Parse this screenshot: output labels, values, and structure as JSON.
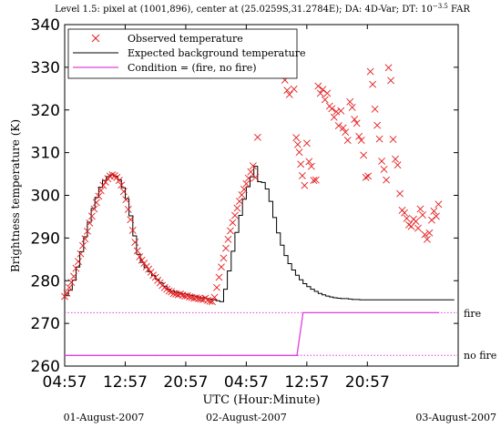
{
  "chart_data": {
    "type": "line",
    "title_prefix": "Level 1.5: pixel at (1001,896), center at (25.0259S,31.2784E); DA: 4D-Var; DT: 10",
    "title_exponent": "−3.5",
    "title_suffix": " FAR",
    "xlabel": "UTC (Hour:Minute)",
    "ylabel": "Brightness temperature (K)",
    "x_unit": "hours since 01-August-2007 04:57 UTC",
    "xlim": [
      0,
      52
    ],
    "ylim": [
      260,
      340
    ],
    "yticks": [
      260,
      270,
      280,
      290,
      300,
      310,
      320,
      330,
      340
    ],
    "xticks": [
      {
        "x": 0,
        "label": "04:57"
      },
      {
        "x": 8,
        "label": "12:57"
      },
      {
        "x": 16,
        "label": "20:57"
      },
      {
        "x": 24,
        "label": "04:57"
      },
      {
        "x": 32,
        "label": "12:57"
      },
      {
        "x": 40,
        "label": "20:57"
      }
    ],
    "date_labels": [
      {
        "x": 0,
        "label": "01-August-2007"
      },
      {
        "x": 24,
        "label": "02-August-2007"
      },
      {
        "x": 48,
        "label": "03-August-2007"
      }
    ],
    "condition_labels": {
      "fire": "fire",
      "no_fire": "no fire",
      "fire_level": 272.5,
      "no_fire_level": 262.5
    },
    "legend": [
      {
        "label": "Observed temperature",
        "marker": "x",
        "color": "#e41a1c"
      },
      {
        "label": "Expected background temperature",
        "color": "#000000"
      },
      {
        "label": "Condition = (fire, no fire)",
        "color": "#e040e0"
      }
    ],
    "series": [
      {
        "name": "Expected background temperature",
        "style": "step",
        "color": "#000000",
        "x": [
          0,
          0.5,
          1,
          1.5,
          2,
          2.5,
          3,
          3.5,
          4,
          4.5,
          5,
          5.5,
          6,
          6.5,
          7,
          7.5,
          8,
          8.5,
          9,
          9.5,
          10,
          10.5,
          11,
          11.5,
          12,
          12.5,
          13,
          13.5,
          14,
          14.5,
          15,
          15.5,
          16,
          16.5,
          17,
          17.5,
          18,
          18.5,
          19,
          19.5,
          20,
          20.5,
          21,
          21.5,
          22,
          22.5,
          23,
          23.5,
          24,
          24.5,
          25,
          25.5,
          26,
          26.5,
          27,
          27.5,
          28,
          28.5,
          29,
          29.5,
          30,
          30.5,
          31,
          31.5,
          32,
          32.5,
          33,
          33.5,
          34,
          34.5,
          35,
          35.5,
          36,
          36.5,
          37,
          37.5,
          38,
          38.5,
          39,
          39.5,
          40,
          40.5,
          41,
          41.5,
          42,
          42.5,
          43,
          43.5,
          44,
          44.5,
          45,
          45.5,
          46,
          46.5,
          47,
          47.5,
          48,
          48.5,
          49,
          49.5,
          50,
          50.5,
          51,
          51.5
        ],
        "y": [
          276.5,
          277.8,
          280.1,
          283.2,
          286.8,
          290.3,
          293.7,
          296.9,
          299.5,
          301.9,
          303.5,
          304.4,
          304.8,
          304.5,
          303.6,
          301.8,
          299.2,
          295.2,
          290.5,
          286.2,
          284.3,
          283.1,
          282.1,
          281.2,
          280.3,
          279.5,
          278.7,
          278.0,
          277.6,
          277.3,
          277.1,
          276.9,
          276.8,
          276.6,
          276.4,
          276.2,
          276.0,
          275.8,
          275.7,
          275.5,
          275.3,
          275.1,
          278.0,
          282.3,
          286.9,
          291.3,
          295.3,
          299.1,
          302.0,
          304.3,
          306.8,
          303.2,
          303.0,
          301.5,
          298.6,
          294.8,
          291.2,
          288.3,
          285.9,
          284.0,
          282.5,
          281.3,
          280.2,
          279.3,
          278.6,
          278.0,
          277.5,
          277.0,
          276.7,
          276.4,
          276.2,
          276.0,
          275.9,
          275.8,
          275.8,
          275.7,
          275.6,
          275.6,
          275.5,
          275.5,
          275.5,
          275.5,
          275.5,
          275.5,
          275.5,
          275.5,
          275.5,
          275.5,
          275.5,
          275.5,
          275.5,
          275.5,
          275.5,
          275.5,
          275.5,
          275.5,
          275.5,
          275.5,
          275.5,
          275.5,
          275.5,
          275.5,
          275.5,
          275.5
        ]
      },
      {
        "name": "Condition = (fire, no fire)",
        "style": "step",
        "color": "#e040e0",
        "x": [
          0,
          30.7,
          31.5,
          49.5
        ],
        "y": [
          262.5,
          262.5,
          272.5,
          272.5
        ]
      },
      {
        "name": "Observed temperature",
        "style": "markers",
        "marker": "x",
        "color": "#e41a1c",
        "x": [
          0,
          0.3,
          0.6,
          0.9,
          1.2,
          1.5,
          1.8,
          2.1,
          2.4,
          2.7,
          3.0,
          3.3,
          3.6,
          3.9,
          4.2,
          4.5,
          4.8,
          5.1,
          5.4,
          5.7,
          6.0,
          6.3,
          6.6,
          6.9,
          7.2,
          7.5,
          7.8,
          8.1,
          8.4,
          8.7,
          9.0,
          9.3,
          9.6,
          9.9,
          10.2,
          10.5,
          10.8,
          11.1,
          11.4,
          11.7,
          12.0,
          12.3,
          12.6,
          12.9,
          13.2,
          13.5,
          13.8,
          14.1,
          14.4,
          14.7,
          15.0,
          15.3,
          15.6,
          15.9,
          16.2,
          16.5,
          16.8,
          17.1,
          17.4,
          17.7,
          18.0,
          18.3,
          18.6,
          18.9,
          19.2,
          19.5,
          19.8,
          20.1,
          20.4,
          20.7,
          21.0,
          21.3,
          21.6,
          21.9,
          22.2,
          22.5,
          22.8,
          23.1,
          23.4,
          23.7,
          24.0,
          24.3,
          24.6,
          24.9,
          25.2,
          25.5,
          25.8,
          26.1,
          26.4,
          26.7,
          27.0,
          27.3,
          27.6,
          27.9,
          28.2,
          28.5,
          28.8,
          29.1,
          29.4,
          29.7,
          30.0,
          30.3,
          30.6,
          30.8,
          31.0,
          31.2,
          31.4,
          31.7,
          32.0,
          32.3,
          32.6,
          32.9,
          33.2,
          33.5,
          33.8,
          34.1,
          34.4,
          34.7,
          35.0,
          35.3,
          35.6,
          35.9,
          36.2,
          36.5,
          36.8,
          37.1,
          37.4,
          37.7,
          38.0,
          38.3,
          38.6,
          38.9,
          39.2,
          39.5,
          39.8,
          40.1,
          40.4,
          40.7,
          41.0,
          41.3,
          41.6,
          41.9,
          42.2,
          42.5,
          42.8,
          43.1,
          43.4,
          43.7,
          44.0,
          44.3,
          44.6,
          44.9,
          45.2,
          45.5,
          45.8,
          46.1,
          46.4,
          46.7,
          47.0,
          47.3,
          47.6,
          47.9,
          48.2,
          48.5,
          48.8,
          49.1,
          49.4
        ],
        "y": [
          276.3,
          277.1,
          278.4,
          279.6,
          281.0,
          282.9,
          284.5,
          286.3,
          288.2,
          289.8,
          291.6,
          293.5,
          295.1,
          296.8,
          298.3,
          299.8,
          301.1,
          302.3,
          303.1,
          303.9,
          304.5,
          304.8,
          304.6,
          304.2,
          303.5,
          302.4,
          300.9,
          299.0,
          296.7,
          294.3,
          291.8,
          289.0,
          287.0,
          285.6,
          284.8,
          284.1,
          283.3,
          282.7,
          282.0,
          281.3,
          280.8,
          280.1,
          279.5,
          278.9,
          278.4,
          278.0,
          277.6,
          277.4,
          277.0,
          276.9,
          276.7,
          276.9,
          276.6,
          276.4,
          276.5,
          276.2,
          276.1,
          275.9,
          276.0,
          275.8,
          275.7,
          275.6,
          275.9,
          275.4,
          275.2,
          275.1,
          276.1,
          278.4,
          280.8,
          283.2,
          285.3,
          287.6,
          289.7,
          291.7,
          293.6,
          295.3,
          297.0,
          298.6,
          300.1,
          301.4,
          302.7,
          304.0,
          305.5,
          306.9,
          304.2,
          313.6,
          331.3,
          329.4,
          330.5,
          328.8,
          335.6,
          335.8,
          335.6,
          335.6,
          335.5,
          335.6,
          335.7,
          327.0,
          324.6,
          323.6,
          328.4,
          324.9,
          313.5,
          311.9,
          310.1,
          307.3,
          304.6,
          302.3,
          312.2,
          307.9,
          306.8,
          303.5,
          303.6,
          325.6,
          323.9,
          324.8,
          322.4,
          323.9,
          320.9,
          320.3,
          318.3,
          319.6,
          316.3,
          319.8,
          315.8,
          314.8,
          312.9,
          321.9,
          320.6,
          317.8,
          316.9,
          313.8,
          312.9,
          309.4,
          304.2,
          304.5,
          329.0,
          326.0,
          320.2,
          316.4,
          313.2,
          308.0,
          306.1,
          303.6,
          329.9,
          326.9,
          313.1,
          308.5,
          307.1,
          300.4,
          296.5,
          295.9,
          294.6,
          293.1,
          292.7,
          294.4,
          293.9,
          292.3,
          296.8,
          295.4,
          290.8,
          289.7,
          291.2,
          294.2,
          296.3,
          295.1,
          297.9
        ]
      }
    ],
    "grid": false,
    "legend_placement": "top-left"
  }
}
